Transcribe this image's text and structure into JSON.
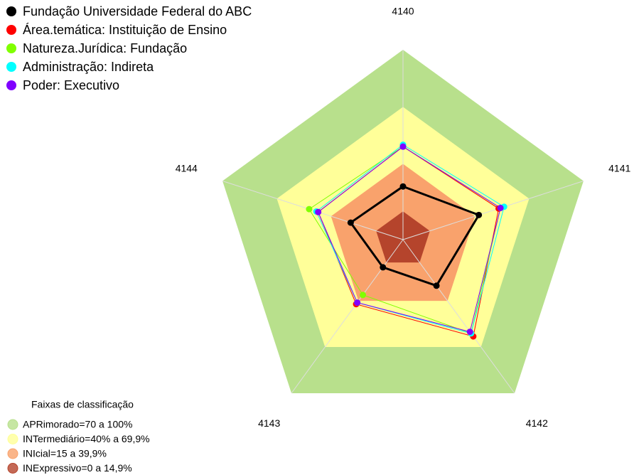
{
  "chart_data": {
    "type": "radar",
    "categories": [
      "4140",
      "4141",
      "4142",
      "4143",
      "4144"
    ],
    "rlim": [
      0,
      100
    ],
    "series": [
      {
        "name": "Fundação Universidade Federal do ABC",
        "color": "#000000",
        "values": [
          28,
          42,
          30,
          18,
          29
        ]
      },
      {
        "name": "Área.temática: Instituição de Ensino",
        "color": "#ff0000",
        "values": [
          49,
          53,
          63,
          42,
          47
        ]
      },
      {
        "name": "Natureza.Jurídica: Fundação",
        "color": "#80ff00",
        "values": [
          49,
          54,
          61,
          36,
          52
        ]
      },
      {
        "name": "Administração: Indireta",
        "color": "#00ffff",
        "values": [
          50,
          56,
          61,
          41,
          48
        ]
      },
      {
        "name": "Poder: Executivo",
        "color": "#8000ff",
        "values": [
          49,
          54,
          60,
          41,
          47
        ]
      }
    ],
    "bands_title": "Faixas de classificação",
    "bands": [
      {
        "label": "APRimorado=70 a 100%",
        "from": 70,
        "to": 100,
        "color": "#b8e08c"
      },
      {
        "label": "INTermediário=40% a 69,9%",
        "from": 40,
        "to": 69.9,
        "color": "#ffff99"
      },
      {
        "label": "INIcial=15 a 39,9%",
        "from": 15,
        "to": 39.9,
        "color": "#f9a26c"
      },
      {
        "label": "INExpressivo=0 a 14,9%",
        "from": 0,
        "to": 14.9,
        "color": "#b5442c"
      }
    ]
  }
}
